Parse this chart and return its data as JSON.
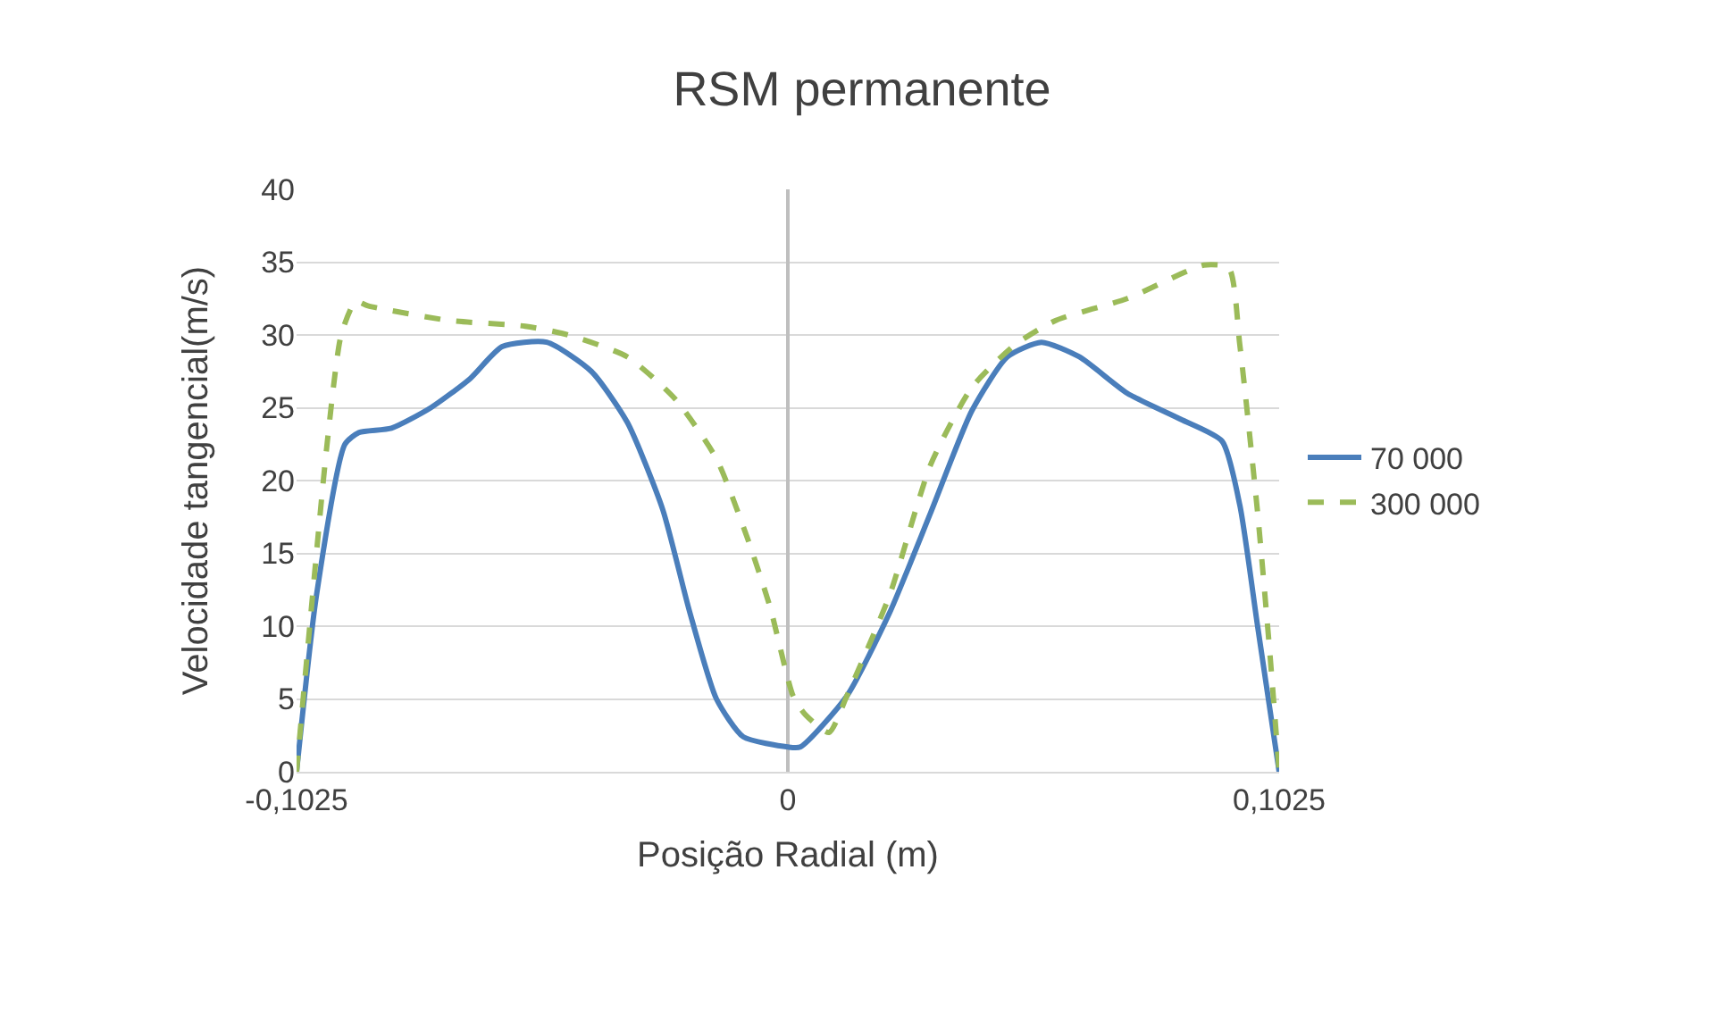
{
  "chart_data": {
    "type": "line",
    "title": "RSM permanente",
    "xlabel": "Posição Radial (m)",
    "ylabel": "Velocidade tangencial(m/s)",
    "xlim": [
      -0.1025,
      0.1025
    ],
    "xticks": [
      {
        "value": -0.1025,
        "label": "-0,1025"
      },
      0,
      {
        "value": 0.1025,
        "label": "0,1025"
      }
    ],
    "ylim": [
      0,
      40
    ],
    "yticks": [
      0,
      5,
      10,
      15,
      20,
      25,
      30,
      35,
      40
    ],
    "grid": "y",
    "legend": "right",
    "series": [
      {
        "name": "70 000",
        "color": "#4a7ebb",
        "line_style": "solid",
        "x": [
          -0.1025,
          -0.0984,
          -0.0924,
          -0.0895,
          -0.0827,
          -0.0745,
          -0.0663,
          -0.0596,
          -0.0503,
          -0.041,
          -0.0335,
          -0.0261,
          -0.0205,
          -0.0149,
          -0.0093,
          0,
          0.0026,
          0.0123,
          0.0212,
          0.0298,
          0.0384,
          0.0458,
          0.0529,
          0.0608,
          0.0708,
          0.082,
          0.0906,
          0.0943,
          0.098,
          0.1025
        ],
        "values": [
          0,
          12,
          22.5,
          23.3,
          23.6,
          25,
          27,
          29.2,
          29.5,
          27.5,
          24,
          18,
          11,
          5,
          2.4,
          1.7,
          1.7,
          5.2,
          10.9,
          17.8,
          24.8,
          28.5,
          29.5,
          28.5,
          26,
          24.2,
          22.7,
          18.3,
          10,
          0
        ]
      },
      {
        "name": "300 000",
        "color": "#9bbb59",
        "line_style": "dashed",
        "x": [
          -0.1025,
          -0.0962,
          -0.0932,
          -0.0902,
          -0.0876,
          -0.0708,
          -0.0548,
          -0.0458,
          -0.0335,
          -0.0235,
          -0.0149,
          -0.0086,
          -0.0037,
          0.0011,
          0.0037,
          0.0086,
          0.0123,
          0.0212,
          0.0298,
          0.0384,
          0.0473,
          0.0559,
          0.0708,
          0.0868,
          0.092,
          0.0943,
          0.098,
          0.1006,
          0.1025
        ],
        "values": [
          0,
          22.3,
          30,
          32.3,
          32,
          31,
          30.6,
          30,
          28.5,
          25.6,
          21.5,
          16.2,
          11.3,
          5.2,
          3.9,
          2.7,
          5.2,
          12.1,
          21.1,
          26.4,
          29.3,
          31,
          32.5,
          34.8,
          34.6,
          29.3,
          17.8,
          8,
          0
        ]
      }
    ]
  }
}
